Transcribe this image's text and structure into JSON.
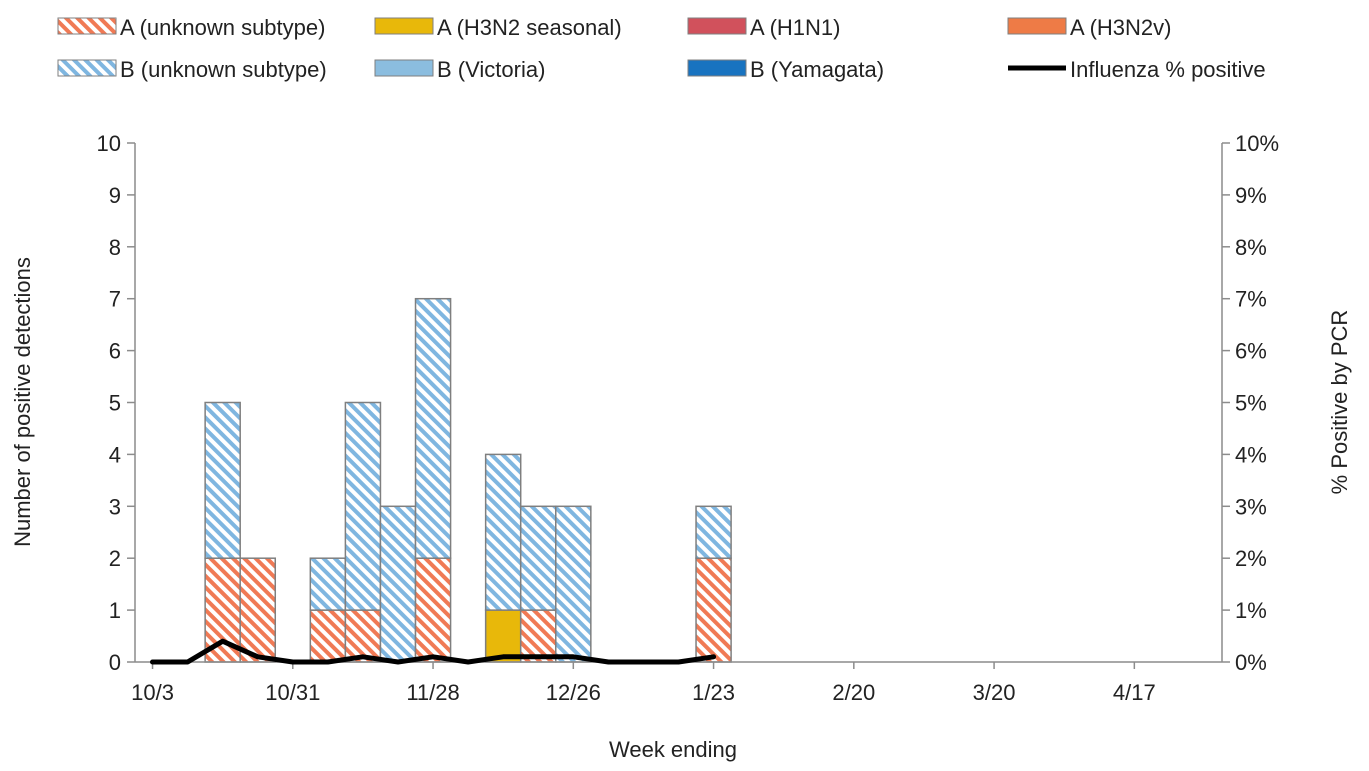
{
  "chart_data": {
    "type": "bar",
    "stacked": true,
    "xlabel": "Week ending",
    "ylabel": "Number of positive detections",
    "y2label": "% Positive by PCR",
    "ylim": [
      0,
      10
    ],
    "y2lim": [
      0,
      10
    ],
    "grid": false,
    "legend_position": "top",
    "x_tick_labels": [
      "10/3",
      "10/31",
      "11/28",
      "12/26",
      "1/23",
      "2/20",
      "3/20",
      "4/17"
    ],
    "y_tick_labels": [
      "0",
      "1",
      "2",
      "3",
      "4",
      "5",
      "6",
      "7",
      "8",
      "9",
      "10"
    ],
    "y2_tick_labels": [
      "0%",
      "1%",
      "2%",
      "3%",
      "4%",
      "5%",
      "6%",
      "7%",
      "8%",
      "9%",
      "10%"
    ],
    "weeks": [
      "10/3",
      "10/10",
      "10/17",
      "10/24",
      "10/31",
      "11/7",
      "11/14",
      "11/21",
      "11/28",
      "12/5",
      "12/12",
      "12/19",
      "12/26",
      "1/2",
      "1/9",
      "1/16",
      "1/23",
      "1/30",
      "2/6",
      "2/13",
      "2/20",
      "2/27",
      "3/6",
      "3/13",
      "3/20",
      "3/27",
      "4/3",
      "4/10",
      "4/17",
      "4/24",
      "5/1"
    ],
    "series": [
      {
        "name": "A (unknown subtype)",
        "color": "#f07a55",
        "pattern": "hatched",
        "values": [
          0,
          0,
          2,
          2,
          0,
          1,
          1,
          0,
          2,
          0,
          0,
          1,
          0,
          0,
          0,
          0,
          2,
          0,
          0,
          0,
          0,
          0,
          0,
          0,
          0,
          0,
          0,
          0,
          0,
          0,
          0
        ]
      },
      {
        "name": "A (H3N2 seasonal)",
        "color": "#e8b80a",
        "pattern": "solid",
        "values": [
          0,
          0,
          0,
          0,
          0,
          0,
          0,
          0,
          0,
          0,
          1,
          0,
          0,
          0,
          0,
          0,
          0,
          0,
          0,
          0,
          0,
          0,
          0,
          0,
          0,
          0,
          0,
          0,
          0,
          0,
          0
        ]
      },
      {
        "name": "A (H1N1)",
        "color": "#d1515c",
        "pattern": "solid",
        "values": [
          0,
          0,
          0,
          0,
          0,
          0,
          0,
          0,
          0,
          0,
          0,
          0,
          0,
          0,
          0,
          0,
          0,
          0,
          0,
          0,
          0,
          0,
          0,
          0,
          0,
          0,
          0,
          0,
          0,
          0,
          0
        ]
      },
      {
        "name": "A (H3N2v)",
        "color": "#ee7b46",
        "pattern": "solid",
        "values": [
          0,
          0,
          0,
          0,
          0,
          0,
          0,
          0,
          0,
          0,
          0,
          0,
          0,
          0,
          0,
          0,
          0,
          0,
          0,
          0,
          0,
          0,
          0,
          0,
          0,
          0,
          0,
          0,
          0,
          0,
          0
        ]
      },
      {
        "name": "B (unknown subtype)",
        "color": "#7fb6e0",
        "pattern": "hatched",
        "values": [
          0,
          0,
          3,
          0,
          0,
          1,
          4,
          3,
          5,
          0,
          3,
          2,
          3,
          0,
          0,
          0,
          1,
          0,
          0,
          0,
          0,
          0,
          0,
          0,
          0,
          0,
          0,
          0,
          0,
          0,
          0
        ]
      },
      {
        "name": "B (Victoria)",
        "color": "#8bbddf",
        "pattern": "solid",
        "values": [
          0,
          0,
          0,
          0,
          0,
          0,
          0,
          0,
          0,
          0,
          0,
          0,
          0,
          0,
          0,
          0,
          0,
          0,
          0,
          0,
          0,
          0,
          0,
          0,
          0,
          0,
          0,
          0,
          0,
          0,
          0
        ]
      },
      {
        "name": "B (Yamagata)",
        "color": "#1873c0",
        "pattern": "solid",
        "values": [
          0,
          0,
          0,
          0,
          0,
          0,
          0,
          0,
          0,
          0,
          0,
          0,
          0,
          0,
          0,
          0,
          0,
          0,
          0,
          0,
          0,
          0,
          0,
          0,
          0,
          0,
          0,
          0,
          0,
          0,
          0
        ]
      }
    ],
    "line_series": {
      "name": "Influenza % positive",
      "color": "#000000",
      "axis": "right",
      "values": [
        0,
        0,
        0.4,
        0.1,
        0,
        0,
        0.1,
        0,
        0.1,
        0,
        0.1,
        0.1,
        0.1,
        0,
        0,
        0,
        0.1
      ]
    }
  }
}
